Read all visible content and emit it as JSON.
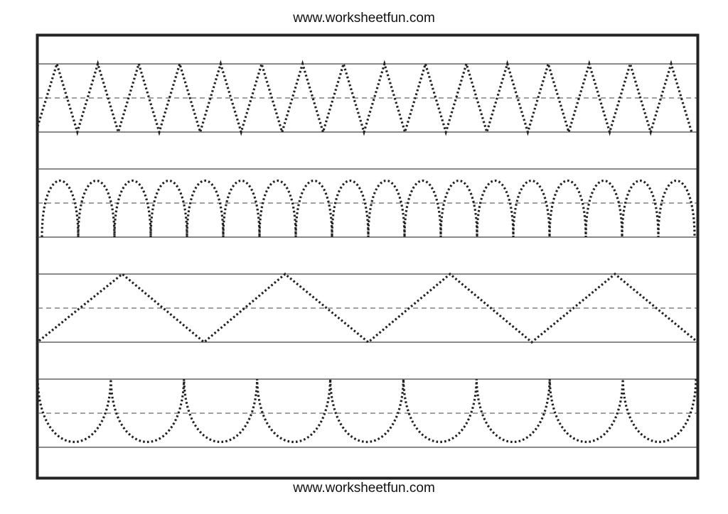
{
  "header": {
    "site_url": "www.worksheetfun.com"
  },
  "footer": {
    "site_url": "www.worksheetfun.com"
  },
  "worksheet": {
    "rows": [
      {
        "pattern": "sharp zigzag",
        "repeats": 16
      },
      {
        "pattern": "arches",
        "repeats": 18
      },
      {
        "pattern": "wide zigzag",
        "repeats": 4
      },
      {
        "pattern": "u-curves",
        "repeats": 9
      }
    ],
    "colors": {
      "ink": "#222222",
      "guide": "#444444"
    }
  }
}
